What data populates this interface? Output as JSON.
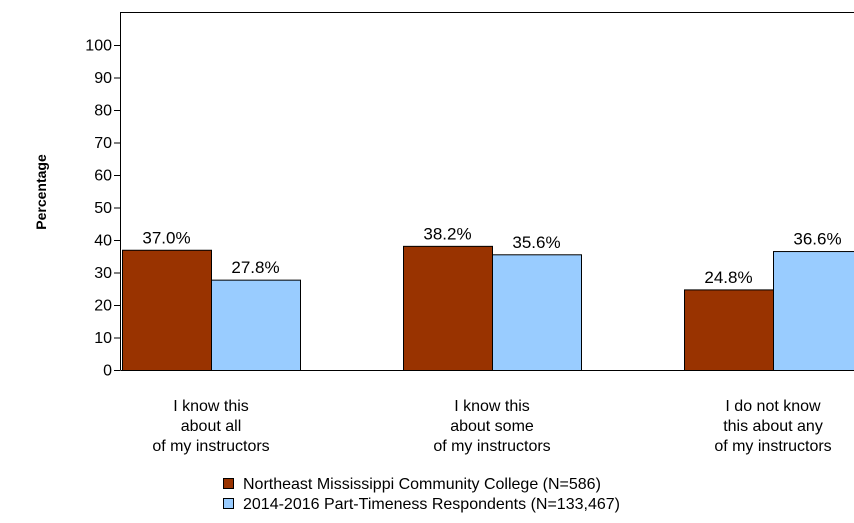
{
  "chart_data": {
    "type": "bar",
    "ylabel": "Percentage",
    "xlabel": "",
    "ylim": [
      0,
      100
    ],
    "yticks": [
      0,
      10,
      20,
      30,
      40,
      50,
      60,
      70,
      80,
      90,
      100
    ],
    "categories": [
      [
        "I know this",
        "about all",
        "of my instructors"
      ],
      [
        "I know this",
        "about some",
        "of my instructors"
      ],
      [
        "I do not know",
        "this about any",
        "of my instructors"
      ]
    ],
    "series": [
      {
        "name": "Northeast Mississippi Community College (N=586)",
        "values": [
          37.0,
          38.2,
          24.8
        ],
        "labels": [
          "37.0%",
          "38.2%",
          "24.8%"
        ],
        "color": "#993300"
      },
      {
        "name": "2014-2016 Part-Timeness Respondents (N=133,467)",
        "values": [
          27.8,
          35.6,
          36.6
        ],
        "labels": [
          "27.8%",
          "35.6%",
          "36.6%"
        ],
        "color": "#99ccff"
      }
    ],
    "grid": false,
    "legend_position": "bottom"
  }
}
